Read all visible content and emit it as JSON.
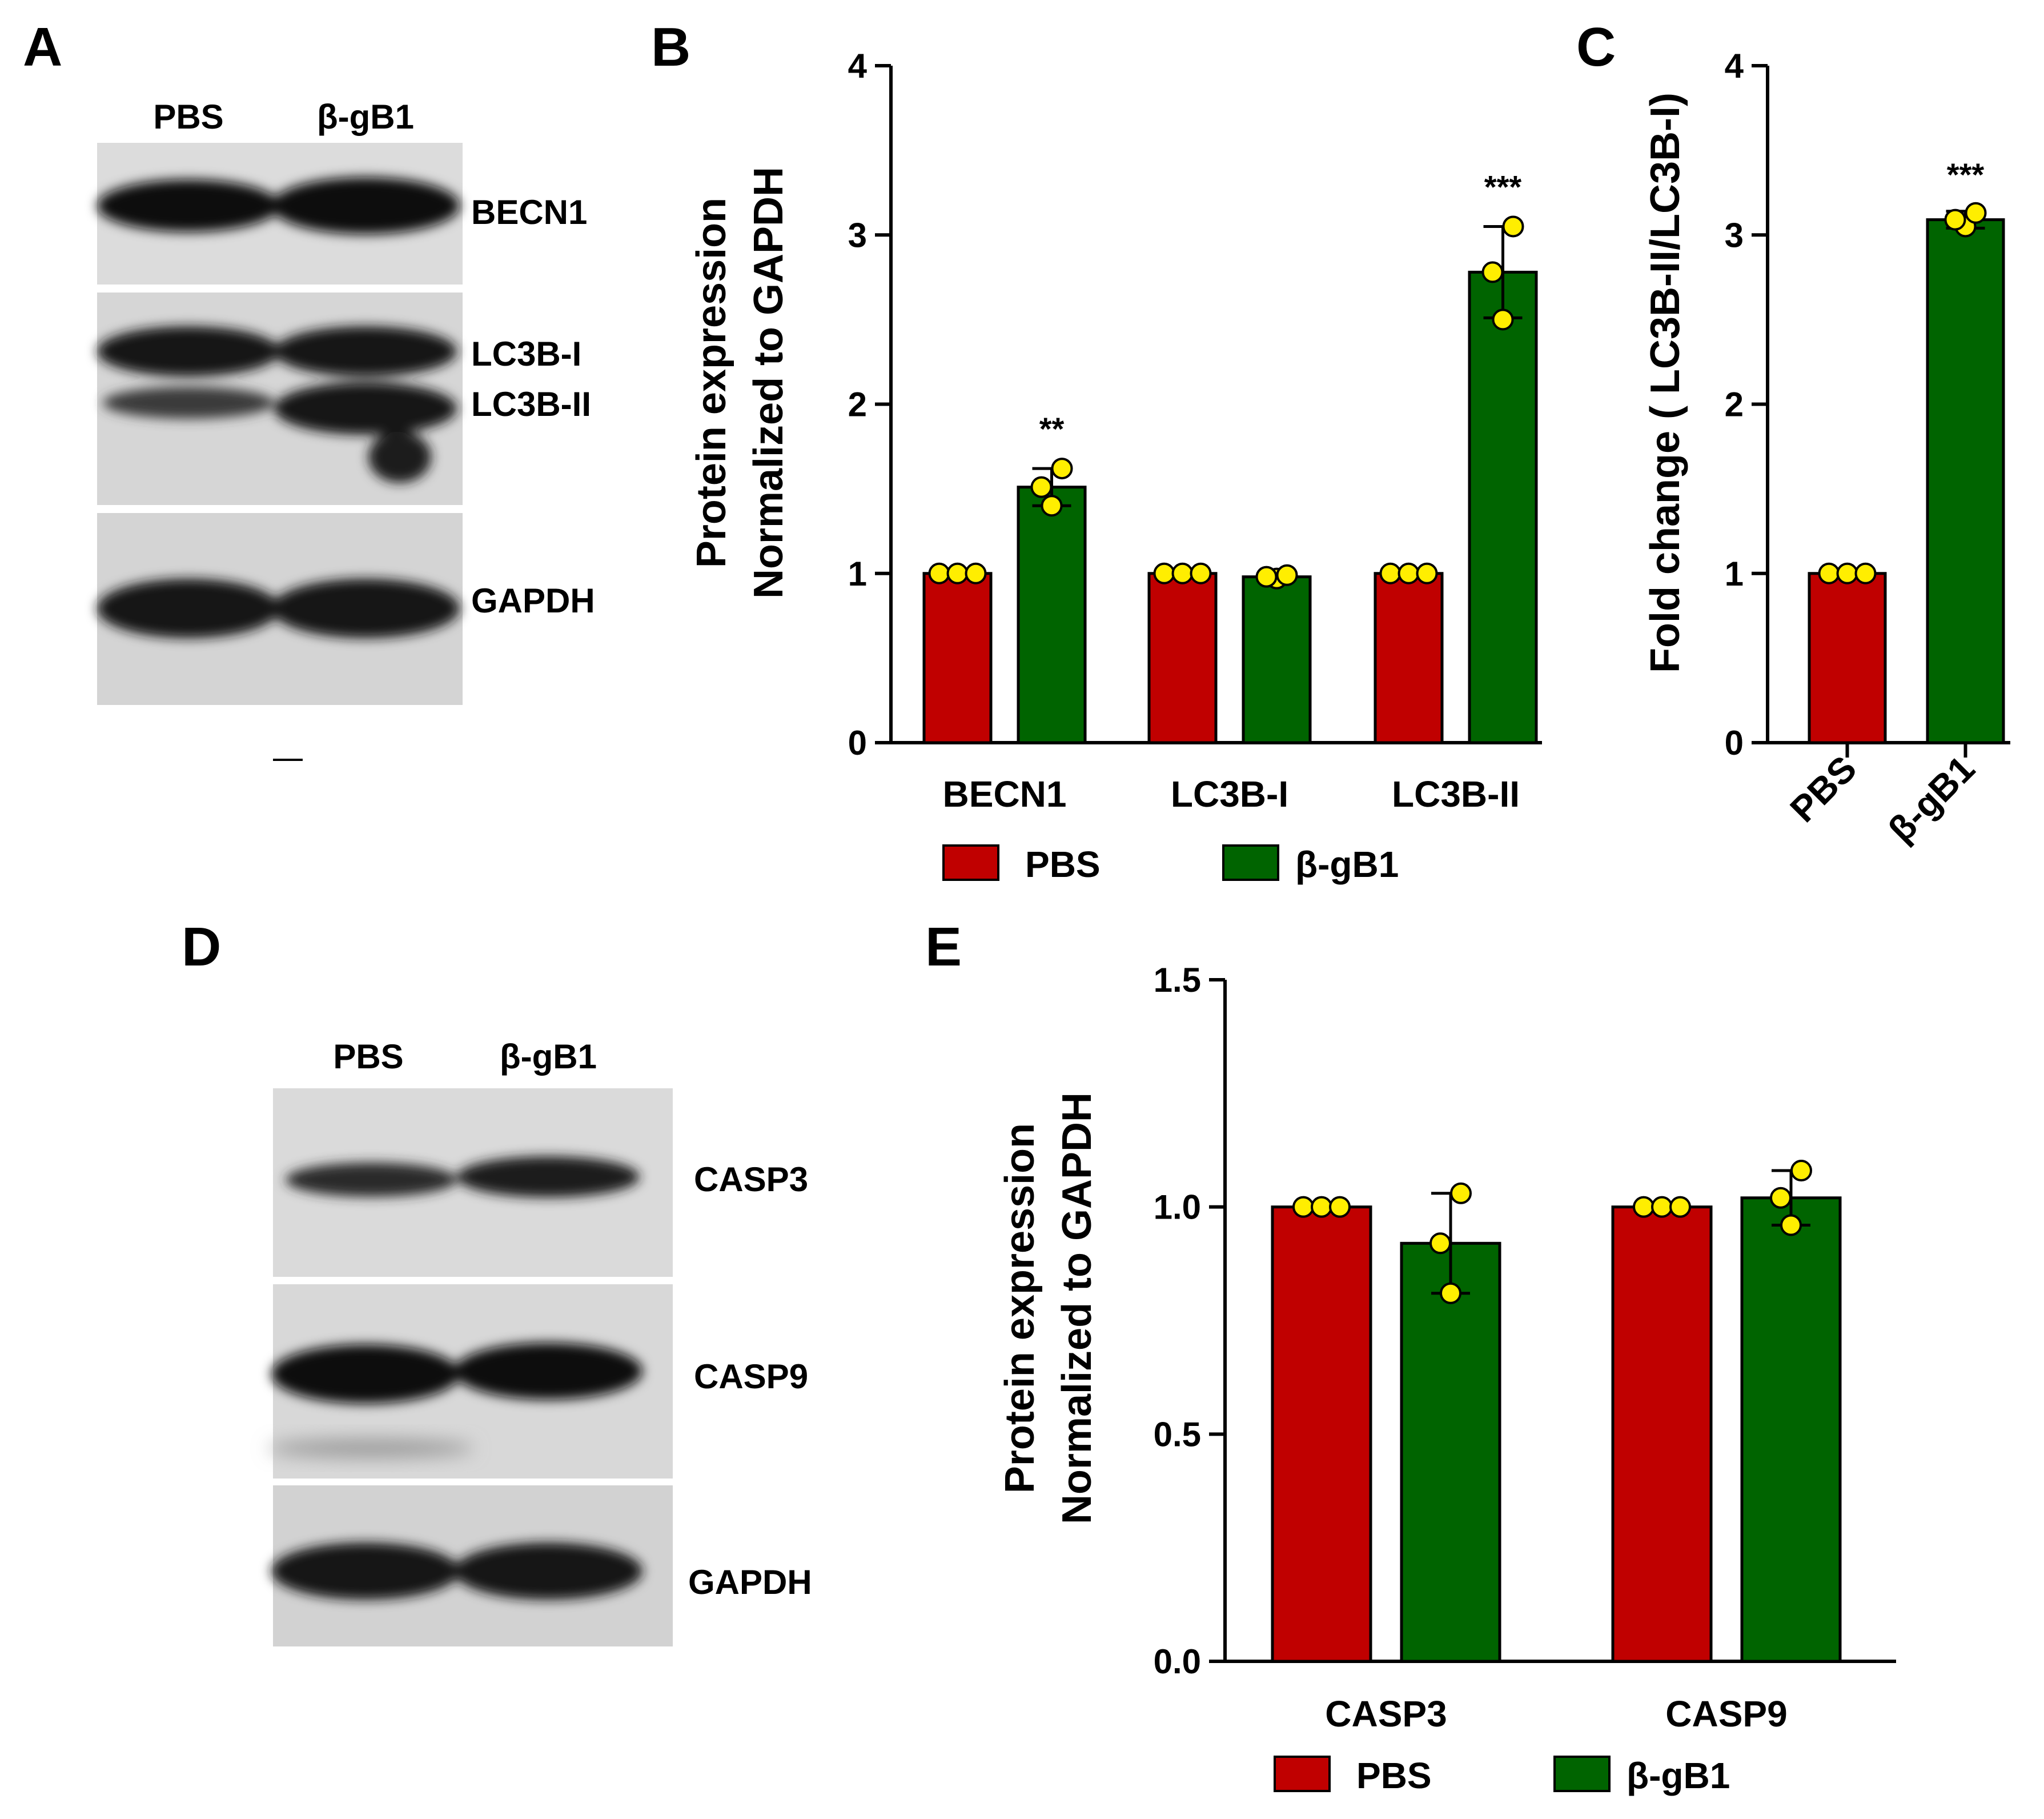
{
  "colors": {
    "pbs": "#c00000",
    "bgb1": "#006400",
    "point": "#ffee00",
    "axis": "#000000"
  },
  "panel_a": {
    "letter": "A",
    "lanes": [
      "PBS",
      "β-gB1"
    ],
    "band_labels": [
      "BECN1",
      "LC3B-I",
      "LC3B-II",
      "GAPDH"
    ]
  },
  "panel_d": {
    "letter": "D",
    "lanes": [
      "PBS",
      "β-gB1"
    ],
    "band_labels": [
      "CASP3",
      "CASP9",
      "GAPDH"
    ]
  },
  "legend": {
    "pbs": "PBS",
    "bgb1": "β-gB1"
  },
  "chart_data": [
    {
      "panel": "B",
      "type": "bar",
      "ylabel_lines": [
        "Protein expression",
        "Normalized to GAPDH"
      ],
      "ylim": [
        0,
        4
      ],
      "yticks": [
        "0",
        "1",
        "2",
        "3",
        "4"
      ],
      "categories": [
        "BECN1",
        "LC3B-I",
        "LC3B-II"
      ],
      "series": [
        {
          "name": "PBS",
          "values": [
            1.0,
            1.0,
            1.0
          ],
          "err": [
            0,
            0,
            0
          ],
          "points": [
            [
              1,
              1,
              1
            ],
            [
              1,
              1,
              1
            ],
            [
              1,
              1,
              1
            ]
          ]
        },
        {
          "name": "β-gB1",
          "values": [
            1.51,
            0.98,
            2.78
          ],
          "err": [
            0.11,
            0.01,
            0.27
          ],
          "points": [
            [
              1.4,
              1.51,
              1.62
            ],
            [
              0.97,
              0.98,
              0.99
            ],
            [
              2.5,
              2.78,
              3.05
            ]
          ]
        }
      ],
      "significance": [
        "**",
        "",
        "***"
      ],
      "legend": "bottom"
    },
    {
      "panel": "C",
      "type": "bar",
      "ylabel": "Fold change ( LC3B-II/LC3B-I)",
      "ylim": [
        0,
        4
      ],
      "yticks": [
        "0",
        "1",
        "2",
        "3",
        "4"
      ],
      "categories": [
        "PBS",
        "β-gB1"
      ],
      "values": [
        1.0,
        3.09
      ],
      "err": [
        0,
        0.05
      ],
      "points": [
        [
          1,
          1,
          1
        ],
        [
          3.05,
          3.09,
          3.13
        ]
      ],
      "significance": [
        "",
        "***"
      ]
    },
    {
      "panel": "E",
      "type": "bar",
      "ylabel_lines": [
        "Protein expression",
        "Normalized to GAPDH"
      ],
      "ylim": [
        0,
        1.5
      ],
      "yticks": [
        "0.0",
        "0.5",
        "1.0",
        "1.5"
      ],
      "categories": [
        "CASP3",
        "CASP9"
      ],
      "series": [
        {
          "name": "PBS",
          "values": [
            1.0,
            1.0
          ],
          "err": [
            0,
            0
          ],
          "points": [
            [
              1,
              1,
              1
            ],
            [
              1,
              1,
              1
            ]
          ]
        },
        {
          "name": "β-gB1",
          "values": [
            0.92,
            1.02
          ],
          "err": [
            0.11,
            0.06
          ],
          "points": [
            [
              0.81,
              0.92,
              1.03
            ],
            [
              0.96,
              1.02,
              1.08
            ]
          ]
        }
      ],
      "legend": "bottom"
    }
  ]
}
